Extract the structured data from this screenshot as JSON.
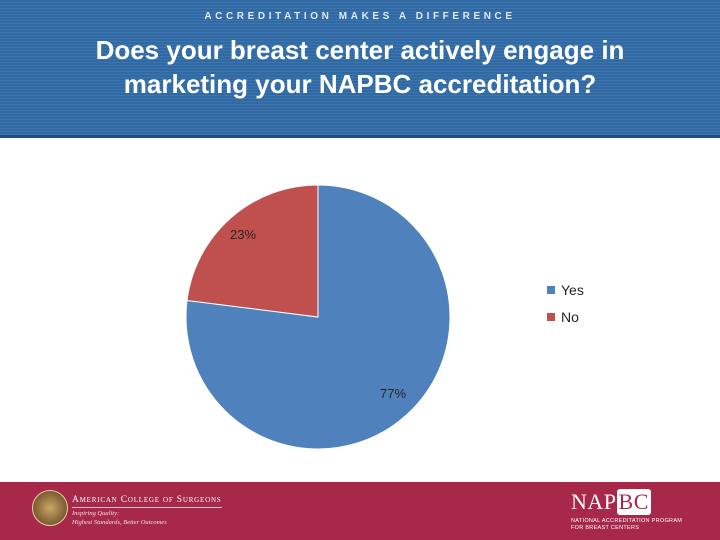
{
  "header": {
    "tagline": "ACCREDITATION MAKES A DIFFERENCE",
    "title_line1": "Does your breast center actively engage in",
    "title_line2": "marketing your NAPBC accreditation?"
  },
  "chart_data": {
    "type": "pie",
    "title": "",
    "categories": [
      "Yes",
      "No"
    ],
    "values": [
      77,
      23
    ],
    "labels": [
      "77%",
      "23%"
    ],
    "colors": [
      "#4f81bd",
      "#c0504d"
    ],
    "start_angle_deg": 0,
    "direction": "clockwise",
    "legend": "right"
  },
  "footer": {
    "acs_name": "American College of Surgeons",
    "acs_tagline1": "Inspiring Quality:",
    "acs_tagline2": "Highest Standards, Better Outcomes",
    "napbc_logo_na": "NAP",
    "napbc_logo_bc": "BC",
    "napbc_sub1": "NATIONAL ACCREDITATION PROGRAM",
    "napbc_sub2": "FOR BREAST CENTERS"
  }
}
